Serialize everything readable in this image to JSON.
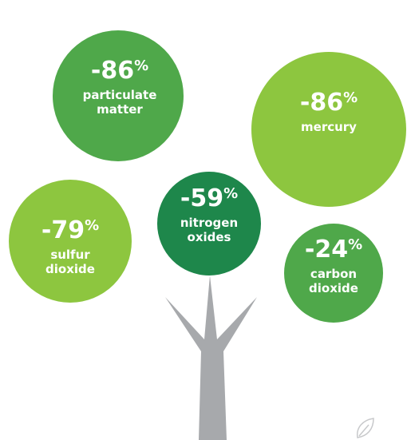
{
  "items": [
    {
      "value": "-86",
      "unit": "%",
      "label": [
        "particulate",
        "matter"
      ]
    },
    {
      "value": "-86",
      "unit": "%",
      "label": [
        "mercury"
      ]
    },
    {
      "value": "-59",
      "unit": "%",
      "label": [
        "nitrogen",
        "oxides"
      ]
    },
    {
      "value": "-79",
      "unit": "%",
      "label": [
        "sulfur",
        "dioxide"
      ]
    },
    {
      "value": "-24",
      "unit": "%",
      "label": [
        "carbon",
        "dioxide"
      ]
    }
  ]
}
